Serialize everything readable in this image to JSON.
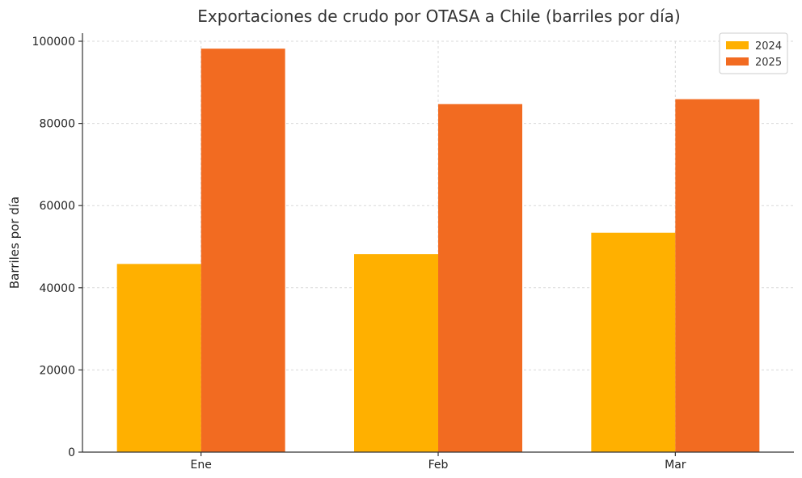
{
  "chart_data": {
    "type": "bar",
    "title": "Exportaciones de crudo por OTASA a Chile (barriles por día)",
    "xlabel": "",
    "ylabel": "Barriles por día",
    "categories": [
      "Ene",
      "Feb",
      "Mar"
    ],
    "series": [
      {
        "name": "2024",
        "color": "#FFB000",
        "values": [
          45800,
          48200,
          53400
        ]
      },
      {
        "name": "2025",
        "color": "#F26B21",
        "values": [
          98200,
          84700,
          85900
        ]
      }
    ],
    "ylim": [
      0,
      100000
    ],
    "yticks": [
      0,
      20000,
      40000,
      60000,
      80000,
      100000
    ],
    "grid": true,
    "legend_position": "top-right"
  }
}
